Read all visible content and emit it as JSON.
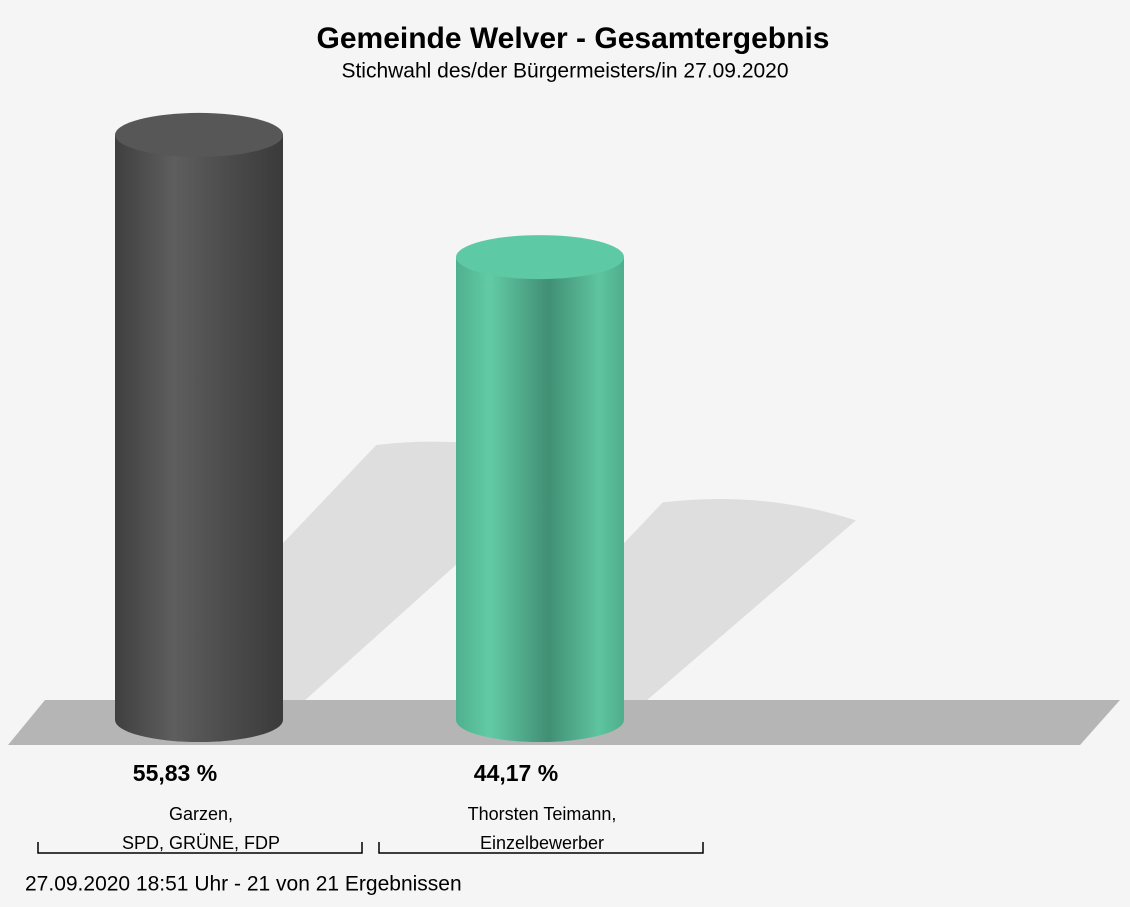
{
  "chart_data": {
    "type": "bar",
    "title": "Gemeinde Welver - Gesamtergebnis",
    "subtitle": "Stichwahl des/der Bürgermeisters/in 27.09.2020",
    "categories": [
      [
        "Garzen,",
        "SPD, GRÜNE, FDP"
      ],
      [
        "Thorsten Teimann,",
        "Einzelbewerber"
      ]
    ],
    "values": [
      55.83,
      44.17
    ],
    "value_labels": [
      "55,83 %",
      "44,17 %"
    ],
    "colors": [
      "#575757",
      "#5ec9a5"
    ],
    "footer": "27.09.2020 18:51 Uhr - 21 von 21 Ergebnissen"
  }
}
